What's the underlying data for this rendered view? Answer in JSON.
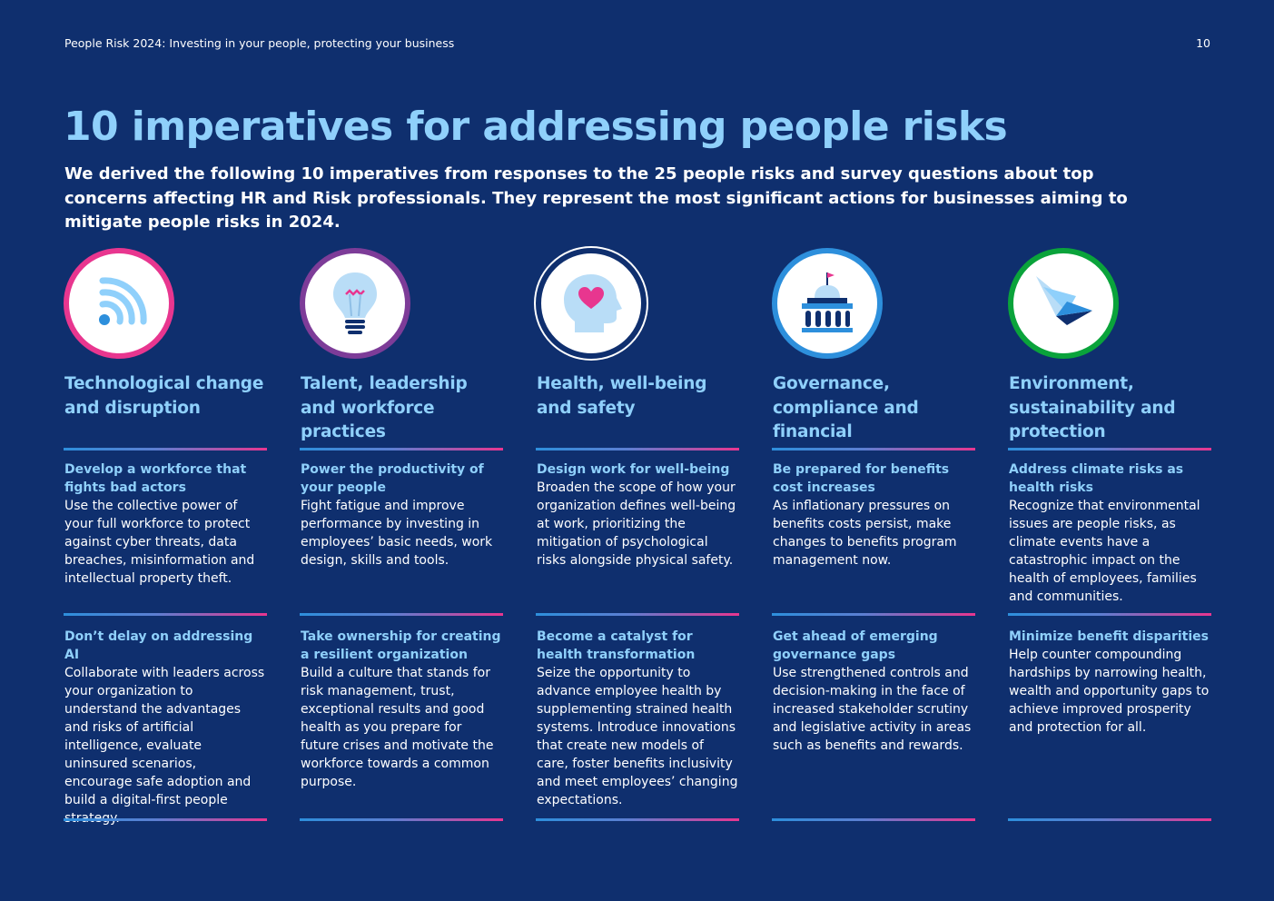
{
  "header": {
    "doc_title": "People Risk 2024: Investing in your people, protecting your business",
    "page_number": "10"
  },
  "title": "10 imperatives for addressing people risks",
  "subtitle": "We derived the following 10 imperatives from responses to the 25 people risks and survey questions about top concerns affecting HR and Risk professionals. They represent the most significant actions for businesses aiming to mitigate people risks in 2024.",
  "colors": {
    "background": "#0f2f6e",
    "title": "#8fd0fb",
    "tech_ring": "#e8368f",
    "talent_ring": "#7d3c98",
    "health_ring": "#0f2f6e",
    "governance_ring": "#2d8fdc",
    "environment_ring": "#0aa33b"
  },
  "categories": [
    {
      "icon": "wifi-signal-icon",
      "title": "Technological change and disruption",
      "items": [
        {
          "title": "Develop a workforce that fights bad actors",
          "body": "Use the collective power of your full workforce to protect against cyber threats, data breaches, misinformation and intellectual property theft."
        },
        {
          "title": "Don’t delay on addressing AI",
          "body": "Collaborate with leaders across your organization to understand the advantages and risks of artificial intelligence, evaluate uninsured scenarios, encourage safe adoption and build a digital-first people strategy."
        }
      ]
    },
    {
      "icon": "lightbulb-icon",
      "title": "Talent, leadership and workforce practices",
      "items": [
        {
          "title": "Power the productivity of your people",
          "body": "Fight fatigue and improve performance by investing in employees’ basic needs, work design, skills and tools."
        },
        {
          "title": "Take ownership for creating a resilient organization",
          "body": "Build a culture that stands for risk management, trust, exceptional results and good health as you prepare for future crises and motivate the workforce towards a common purpose."
        }
      ]
    },
    {
      "icon": "head-heart-icon",
      "title": "Health, well-being and safety",
      "items": [
        {
          "title": "Design work for well-being",
          "body": "Broaden the scope of how your organization defines well-being at work, prioritizing the mitigation of psychological risks alongside physical safety."
        },
        {
          "title": "Become a catalyst for health transformation",
          "body": "Seize the opportunity to advance employee health by supplementing strained health systems. Introduce innovations that create new models of care, foster benefits inclusivity and meet employees’ changing expectations."
        }
      ]
    },
    {
      "icon": "government-building-icon",
      "title": "Governance, compliance and financial",
      "items": [
        {
          "title": "Be prepared for benefits cost increases",
          "body": "As inflationary pressures on benefits costs persist, make changes to benefits program management now."
        },
        {
          "title": "Get ahead of emerging governance gaps",
          "body": "Use strengthened controls and decision-making in the face of increased stakeholder scrutiny and legislative activity in areas such as benefits and rewards."
        }
      ]
    },
    {
      "icon": "bird-icon",
      "title": "Environment, sustainability and protection",
      "items": [
        {
          "title": "Address climate risks as health risks",
          "body": "Recognize that environmental issues are people risks, as climate events have a catastrophic impact on the health of employees, families and communities."
        },
        {
          "title": "Minimize benefit disparities",
          "body": "Help counter compounding hardships by narrowing health, wealth and opportunity gaps to achieve improved prosperity and protection for all."
        }
      ]
    }
  ]
}
